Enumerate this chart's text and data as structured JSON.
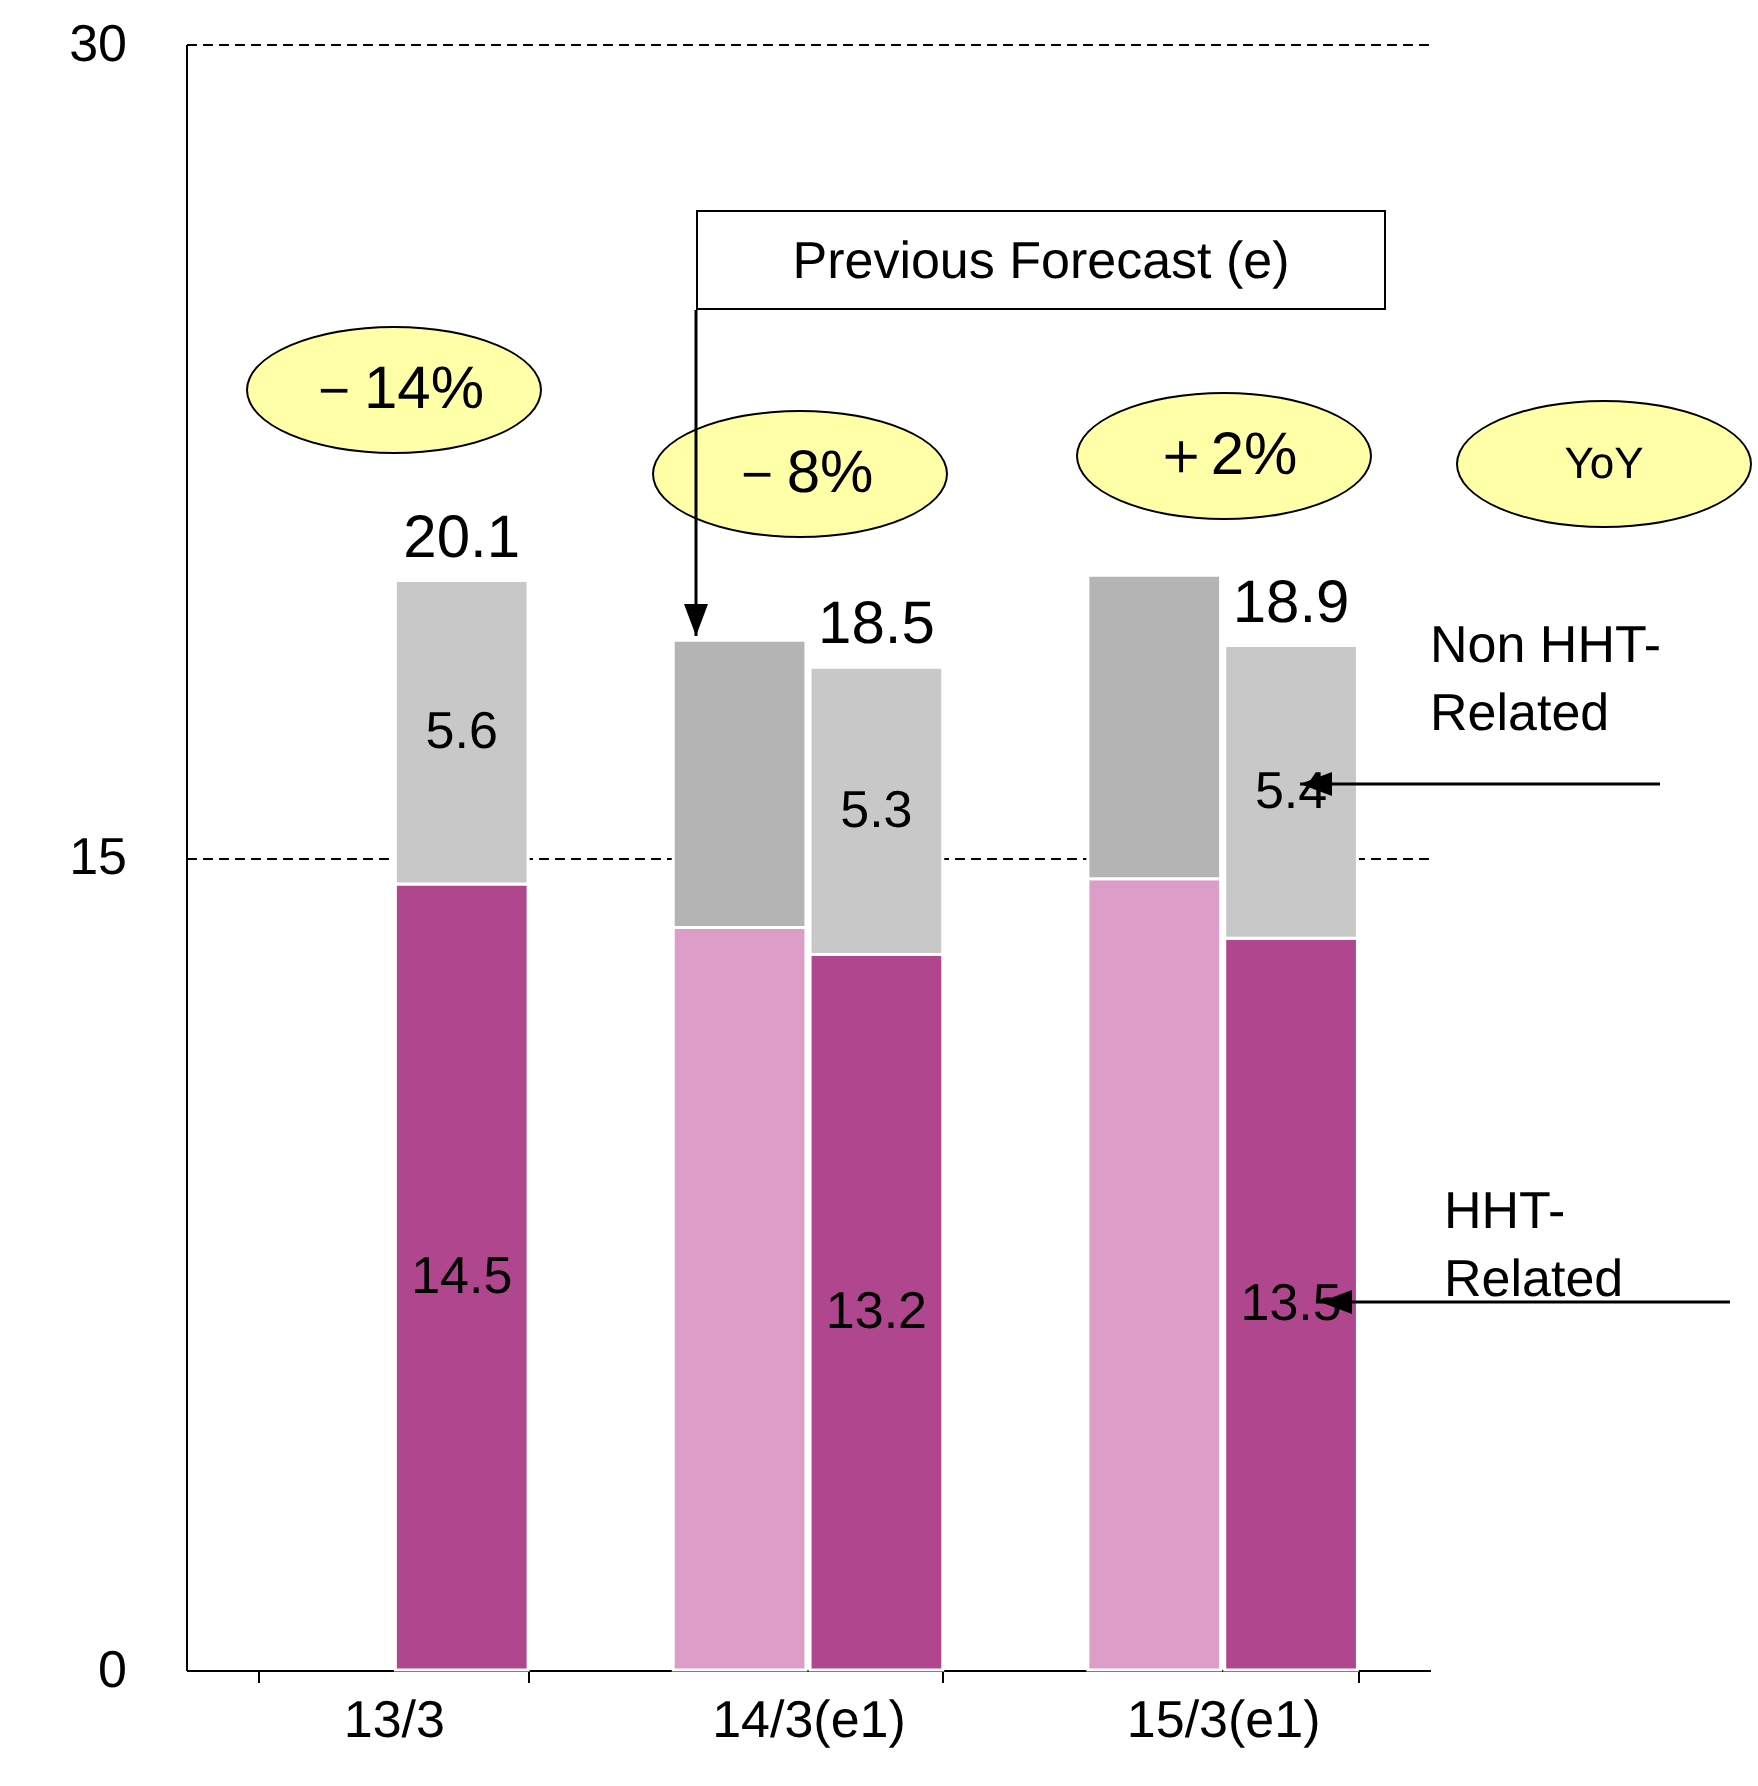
{
  "chart_data": {
    "type": "bar",
    "categories": [
      "13/3",
      "14/3(e1)",
      "15/3(e1)"
    ],
    "series": [
      {
        "name": "HHT-Related",
        "color": "#b0468e",
        "values": [
          14.5,
          13.2,
          13.5
        ],
        "base": [
          0,
          0,
          0
        ],
        "value_labels": [
          "14.5",
          "13.2",
          "13.5"
        ]
      },
      {
        "name": "Non HHT-Related",
        "color": "#c8c8c8",
        "values": [
          5.6,
          5.3,
          5.4
        ],
        "base": [
          14.5,
          13.2,
          13.5
        ],
        "value_labels": [
          "5.6",
          "5.3",
          "5.4"
        ]
      },
      {
        "color": "#dc9ec8",
        "values": [
          null,
          13.7,
          14.6
        ],
        "base": [
          null,
          0,
          0
        ]
      },
      {
        "color": "#b4b4b4",
        "values": [
          null,
          5.3,
          5.6
        ],
        "base": [
          null,
          13.7,
          14.6
        ]
      }
    ],
    "ylim": [
      0,
      30
    ],
    "yticks": [
      0,
      15,
      30
    ],
    "grid": "y",
    "annotations": [
      {
        "text": "20.1",
        "x": "13/3",
        "y": 20.1
      },
      {
        "text": "18.5",
        "x": "14/3(e1)",
        "y": 18.5
      },
      {
        "text": "18.9",
        "x": "15/3(e1)",
        "y": 18.9
      },
      "－14%",
      "－8%",
      "＋2%",
      "YoY",
      "Previous Forecast (e)"
    ]
  }
}
